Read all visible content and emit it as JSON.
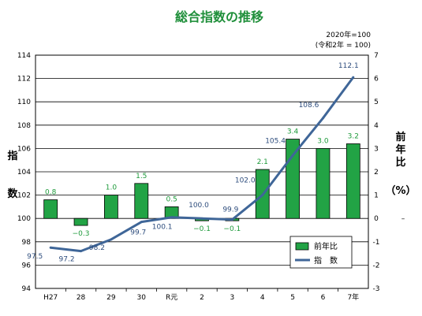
{
  "chart_data": {
    "type": "bar+line",
    "title": "総合指数の推移",
    "base_note_1": "2020年=100",
    "base_note_2": "(令和2年 = 100)",
    "categories": [
      "H27",
      "28",
      "29",
      "30",
      "R元",
      "2",
      "3",
      "4",
      "5",
      "6",
      "7年"
    ],
    "left_axis": {
      "label": "指数",
      "ylim": [
        94,
        114
      ],
      "ticks": [
        94,
        96,
        98,
        100,
        102,
        104,
        106,
        108,
        110,
        112,
        114
      ]
    },
    "right_axis": {
      "label_chars": [
        "前",
        "年",
        "比",
        "（%）"
      ],
      "ylim": [
        -3,
        7
      ],
      "ticks": [
        -3,
        -2,
        -1,
        0,
        1,
        2,
        3,
        4,
        5,
        6,
        7
      ],
      "dash_tick": "–"
    },
    "series": [
      {
        "name": "前年比",
        "type": "bar",
        "axis": "right",
        "color": "#22a345",
        "values": [
          0.8,
          -0.3,
          1.0,
          1.5,
          0.5,
          -0.1,
          -0.1,
          2.1,
          3.4,
          3.0,
          3.2
        ],
        "labels": [
          "0.8",
          "−0.3",
          "1.0",
          "1.5",
          "0.5",
          "−0.1",
          "−0.1",
          "2.1",
          "3.4",
          "3.0",
          "3.2"
        ]
      },
      {
        "name": "指　数",
        "type": "line",
        "axis": "left",
        "color": "#3f6698",
        "values": [
          97.5,
          97.2,
          98.2,
          99.7,
          100.1,
          100.0,
          99.9,
          102.0,
          105.4,
          108.6,
          112.1
        ],
        "labels": [
          "97.5",
          "97.2",
          "98.2",
          "99.7",
          "100.1",
          "100.0",
          "99.9",
          "102.0",
          "105.4",
          "108.6",
          "112.1"
        ]
      }
    ],
    "grid": true,
    "legend_position": "bottom-right"
  }
}
